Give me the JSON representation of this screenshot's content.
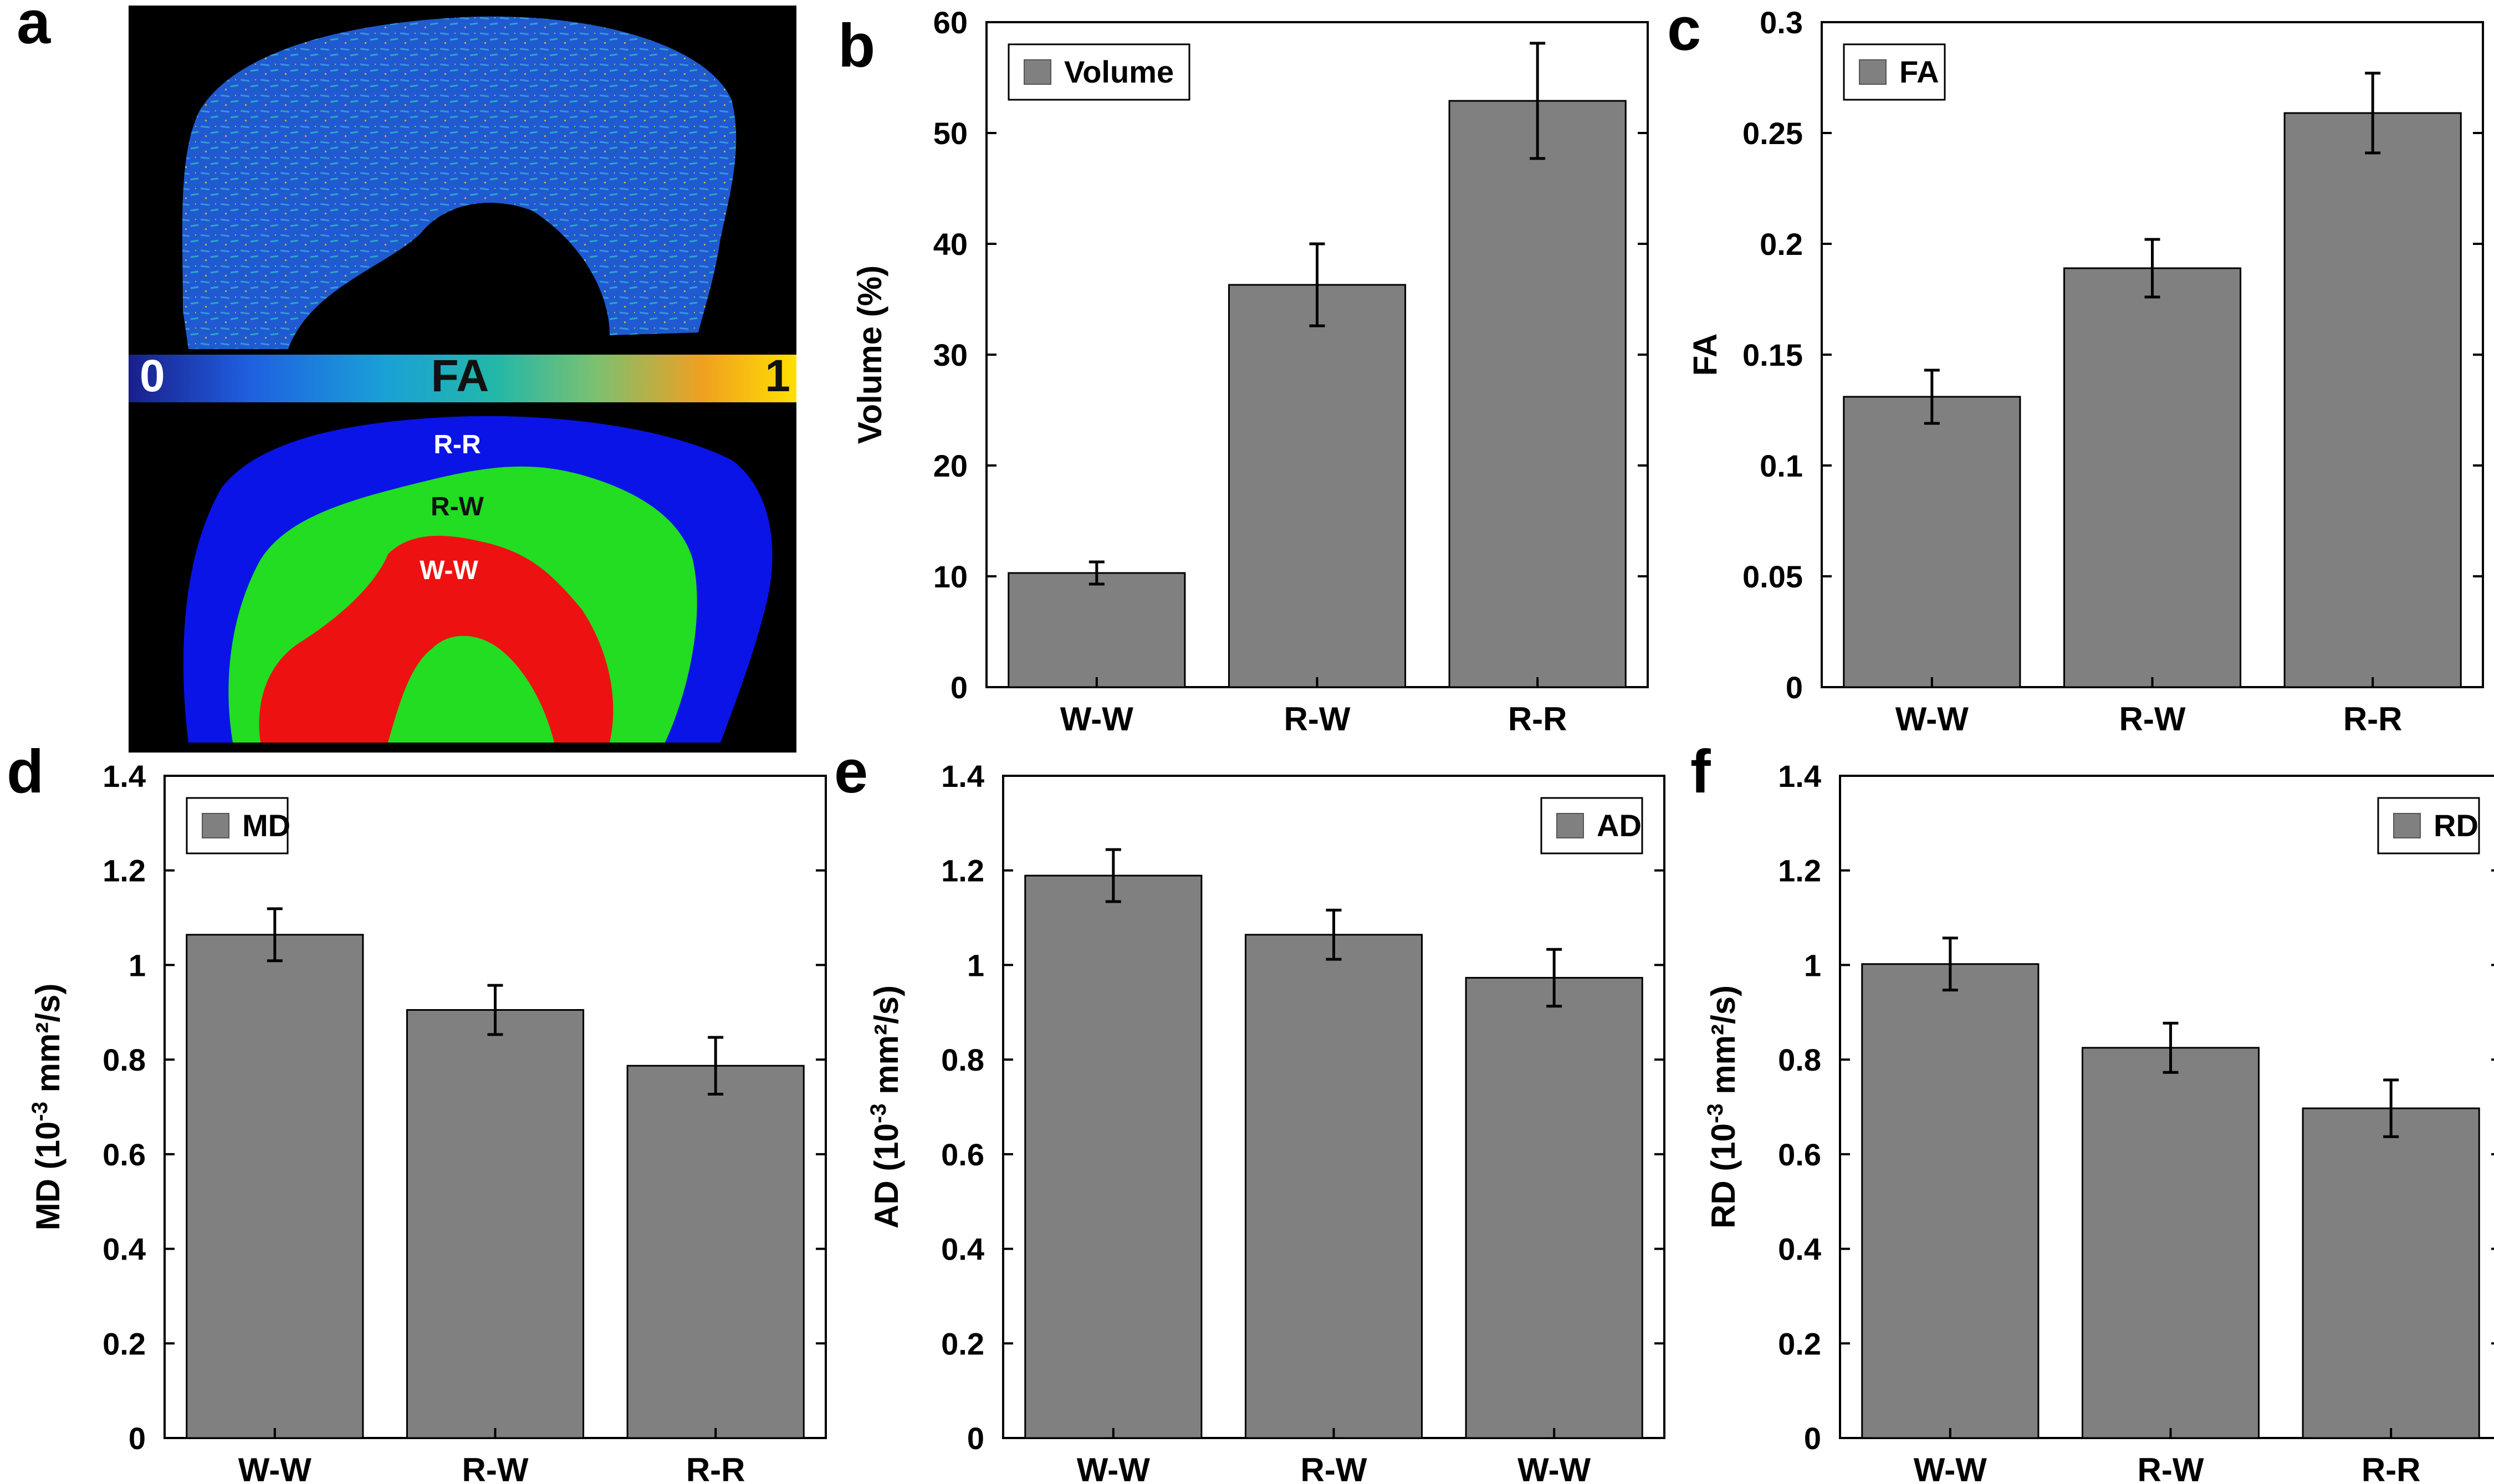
{
  "panel_labels": [
    "a",
    "b",
    "c",
    "d",
    "e",
    "f"
  ],
  "image_panel": {
    "colorbar": {
      "min_label": "0",
      "max_label": "1",
      "title": "FA"
    },
    "region_labels": [
      "R-R",
      "R-W",
      "W-W"
    ],
    "colors": {
      "background": "#000000",
      "outer": "#0a14e6",
      "middle": "#22dd22",
      "inner": "#ee1111"
    }
  },
  "colors": {
    "bar_fill": "#808080",
    "bar_stroke": "#000000"
  },
  "chart_data": [
    {
      "panel": "b",
      "type": "bar",
      "categories": [
        "W-W",
        "R-W",
        "R-R"
      ],
      "series": [
        {
          "name": "Volume",
          "values": [
            10.3,
            36.3,
            52.9
          ],
          "errors": [
            1.0,
            3.7,
            5.2
          ]
        }
      ],
      "ylabel": "Volume (%)",
      "ylabel_sup": "",
      "ylabel_post": "",
      "ylim": [
        0,
        60
      ],
      "yticks": [
        0,
        10,
        20,
        30,
        40,
        50,
        60
      ],
      "ytick_labels": [
        "0",
        "10",
        "20",
        "30",
        "40",
        "50",
        "60"
      ],
      "legend": "top-left",
      "grid": false
    },
    {
      "panel": "c",
      "type": "bar",
      "categories": [
        "W-W",
        "R-W",
        "R-R"
      ],
      "series": [
        {
          "name": "FA",
          "values": [
            0.131,
            0.189,
            0.259
          ],
          "errors": [
            0.012,
            0.013,
            0.018
          ]
        }
      ],
      "ylabel": "FA",
      "ylabel_sup": "",
      "ylabel_post": "",
      "ylim": [
        0,
        0.3
      ],
      "yticks": [
        0,
        0.05,
        0.1,
        0.15,
        0.2,
        0.25,
        0.3
      ],
      "ytick_labels": [
        "0",
        "0.05",
        "0.1",
        "0.15",
        "0.2",
        "0.25",
        "0.3"
      ],
      "legend": "top-left",
      "grid": false
    },
    {
      "panel": "d",
      "type": "bar",
      "categories": [
        "W-W",
        "R-W",
        "R-R"
      ],
      "series": [
        {
          "name": "MD",
          "values": [
            1.064,
            0.905,
            0.787
          ],
          "errors": [
            0.055,
            0.052,
            0.06
          ]
        }
      ],
      "ylabel": "MD (10",
      "ylabel_sup": "-3",
      "ylabel_post": " mm²/s)",
      "ylim": [
        0,
        1.4
      ],
      "yticks": [
        0,
        0.2,
        0.4,
        0.6,
        0.8,
        1,
        1.2,
        1.4
      ],
      "ytick_labels": [
        "0",
        "0.2",
        "0.4",
        "0.6",
        "0.8",
        "1",
        "1.2",
        "1.4"
      ],
      "legend": "top-left",
      "grid": false
    },
    {
      "panel": "e",
      "type": "bar",
      "categories": [
        "W-W",
        "R-W",
        "W-W"
      ],
      "series": [
        {
          "name": "AD",
          "values": [
            1.189,
            1.064,
            0.973
          ],
          "errors": [
            0.055,
            0.052,
            0.06
          ]
        }
      ],
      "ylabel": "AD (10",
      "ylabel_sup": "-3",
      "ylabel_post": " mm²/s)",
      "ylim": [
        0,
        1.4
      ],
      "yticks": [
        0,
        0.2,
        0.4,
        0.6,
        0.8,
        1,
        1.2,
        1.4
      ],
      "ytick_labels": [
        "0",
        "0.2",
        "0.4",
        "0.6",
        "0.8",
        "1",
        "1.2",
        "1.4"
      ],
      "legend": "top-right",
      "grid": false
    },
    {
      "panel": "f",
      "type": "bar",
      "categories": [
        "W-W",
        "R-W",
        "R-R"
      ],
      "series": [
        {
          "name": "RD",
          "values": [
            1.002,
            0.825,
            0.697
          ],
          "errors": [
            0.055,
            0.052,
            0.06
          ]
        }
      ],
      "ylabel": "RD (10",
      "ylabel_sup": "-3",
      "ylabel_post": " mm²/s)",
      "ylim": [
        0,
        1.4
      ],
      "yticks": [
        0,
        0.2,
        0.4,
        0.6,
        0.8,
        1,
        1.2,
        1.4
      ],
      "ytick_labels": [
        "0",
        "0.2",
        "0.4",
        "0.6",
        "0.8",
        "1",
        "1.2",
        "1.4"
      ],
      "legend": "top-right",
      "grid": false
    }
  ]
}
